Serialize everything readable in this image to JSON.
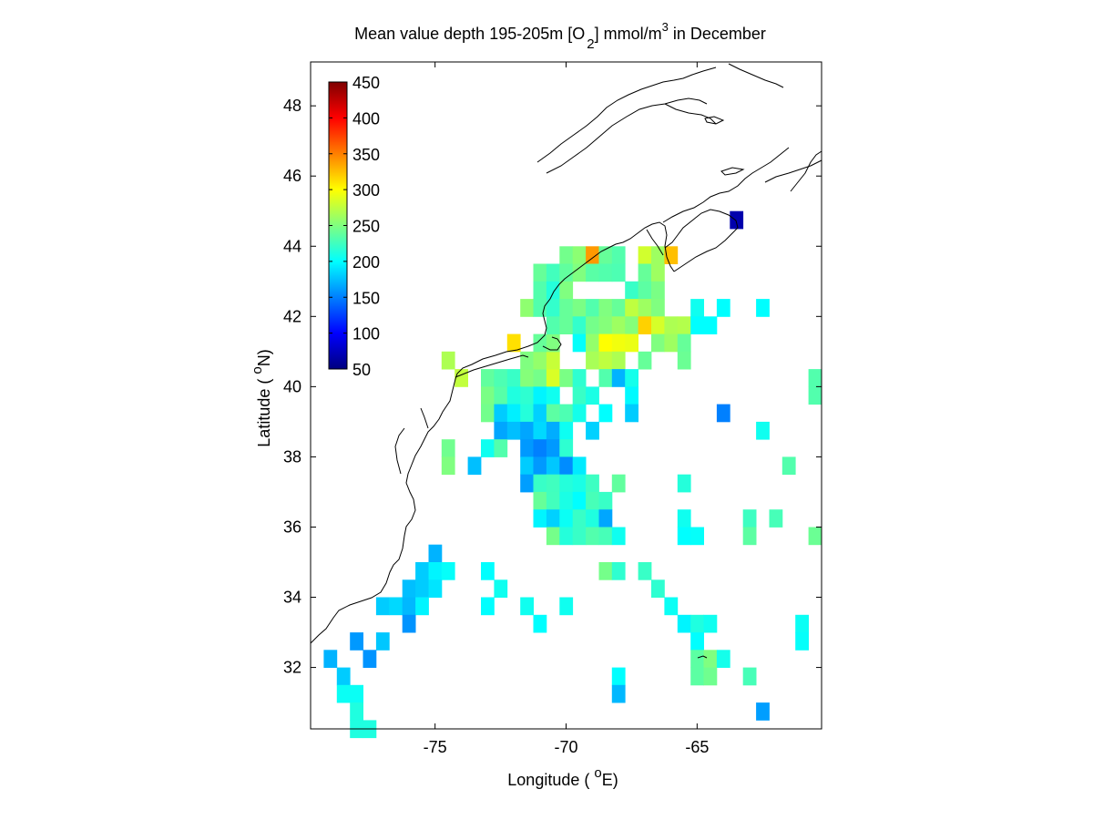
{
  "figure": {
    "title_main": "Mean value depth 195-205m [O",
    "title_sub": "2",
    "title_units": "] mmol/m",
    "title_sup": "3",
    "title_tail": " in December",
    "xlabel_main": "Longitude ( ",
    "xlabel_sup": "o",
    "xlabel_tail": "E)",
    "ylabel_main": "Latitude ( ",
    "ylabel_sup": "o",
    "ylabel_tail": "N)"
  },
  "chart_data": {
    "type": "heatmap",
    "xlim": [
      -79.75,
      -60.25
    ],
    "ylim": [
      30.25,
      49.25
    ],
    "cell_size_deg": 0.5,
    "x_ticks": [
      -75,
      -70,
      -65
    ],
    "x_tick_labels": [
      "-75",
      "-70",
      "-65"
    ],
    "y_ticks": [
      32,
      34,
      36,
      38,
      40,
      42,
      44,
      46,
      48
    ],
    "y_tick_labels": [
      "32",
      "34",
      "36",
      "38",
      "40",
      "42",
      "44",
      "46",
      "48"
    ],
    "colorbar": {
      "range": [
        50,
        450
      ],
      "ticks": [
        50,
        100,
        150,
        200,
        250,
        300,
        350,
        400,
        450
      ],
      "tick_labels": [
        "50",
        "100",
        "150",
        "200",
        "250",
        "300",
        "350",
        "400",
        "450"
      ],
      "colormap": "jet"
    },
    "cells": [
      [
        -74.5,
        40.75,
        268
      ],
      [
        -74,
        40.25,
        276
      ],
      [
        -72,
        41.25,
        312
      ],
      [
        -73,
        40.25,
        238
      ],
      [
        -72.5,
        40.25,
        230
      ],
      [
        -72,
        40.25,
        222
      ],
      [
        -71.5,
        40.25,
        252
      ],
      [
        -71,
        40.25,
        246
      ],
      [
        -70.5,
        40.25,
        285
      ],
      [
        -71.5,
        40.75,
        250
      ],
      [
        -71,
        40.75,
        258
      ],
      [
        -70.5,
        40.75,
        278
      ],
      [
        -71,
        41.25,
        240
      ],
      [
        -70.5,
        41.25,
        250
      ],
      [
        -70,
        43.75,
        245
      ],
      [
        -69.5,
        43.75,
        255
      ],
      [
        -69,
        43.75,
        340
      ],
      [
        -68.5,
        43.75,
        240
      ],
      [
        -68,
        43.75,
        232
      ],
      [
        -67,
        43.75,
        282
      ],
      [
        -66.5,
        43.75,
        262
      ],
      [
        -66,
        43.75,
        325
      ],
      [
        -71,
        43.25,
        240
      ],
      [
        -70.5,
        43.25,
        226
      ],
      [
        -70,
        43.25,
        238
      ],
      [
        -69.5,
        43.25,
        250
      ],
      [
        -69,
        43.25,
        235
      ],
      [
        -68.5,
        43.25,
        232
      ],
      [
        -68,
        43.25,
        230
      ],
      [
        -67,
        43.25,
        240
      ],
      [
        -66.5,
        43.25,
        262
      ],
      [
        -71,
        42.75,
        232
      ],
      [
        -70.5,
        42.75,
        214
      ],
      [
        -70,
        42.75,
        250
      ],
      [
        -67.5,
        42.75,
        222
      ],
      [
        -67,
        42.75,
        236
      ],
      [
        -66.5,
        42.75,
        248
      ],
      [
        -71.5,
        42.25,
        256
      ],
      [
        -71,
        42.25,
        232
      ],
      [
        -70.5,
        42.25,
        220
      ],
      [
        -70,
        42.25,
        240
      ],
      [
        -69.5,
        42.25,
        248
      ],
      [
        -69,
        42.25,
        232
      ],
      [
        -68.5,
        42.25,
        250
      ],
      [
        -68,
        42.25,
        240
      ],
      [
        -67.5,
        42.25,
        275
      ],
      [
        -67,
        42.25,
        262
      ],
      [
        -66.5,
        42.25,
        250
      ],
      [
        -70.5,
        41.75,
        232
      ],
      [
        -70,
        41.75,
        240
      ],
      [
        -69.5,
        41.75,
        220
      ],
      [
        -69,
        41.75,
        246
      ],
      [
        -68.5,
        41.75,
        252
      ],
      [
        -68,
        41.75,
        262
      ],
      [
        -67.5,
        41.75,
        252
      ],
      [
        -67,
        41.75,
        318
      ],
      [
        -66.5,
        41.75,
        284
      ],
      [
        -66,
        41.75,
        268
      ],
      [
        -65.5,
        41.75,
        270
      ],
      [
        -69.5,
        41.25,
        202
      ],
      [
        -69,
        41.25,
        258
      ],
      [
        -68.5,
        41.25,
        300
      ],
      [
        -68,
        41.25,
        295
      ],
      [
        -67.5,
        41.25,
        292
      ],
      [
        -66.5,
        41.25,
        250
      ],
      [
        -66,
        41.25,
        262
      ],
      [
        -65.5,
        41.25,
        240
      ],
      [
        -69,
        40.75,
        266
      ],
      [
        -68.5,
        40.75,
        275
      ],
      [
        -68,
        40.75,
        268
      ],
      [
        -67,
        40.75,
        240
      ],
      [
        -65.5,
        40.75,
        242
      ],
      [
        -70,
        40.25,
        248
      ],
      [
        -69.5,
        40.25,
        218
      ],
      [
        -68.5,
        40.25,
        232
      ],
      [
        -68,
        40.25,
        170
      ],
      [
        -67.5,
        40.25,
        208
      ],
      [
        -73,
        39.75,
        248
      ],
      [
        -72.5,
        39.75,
        234
      ],
      [
        -72,
        39.75,
        212
      ],
      [
        -71.5,
        39.75,
        218
      ],
      [
        -71,
        39.75,
        196
      ],
      [
        -70.5,
        39.75,
        206
      ],
      [
        -69.5,
        39.75,
        222
      ],
      [
        -69,
        39.75,
        210
      ],
      [
        -67.5,
        39.75,
        198
      ],
      [
        -73,
        39.25,
        245
      ],
      [
        -72.5,
        39.25,
        180
      ],
      [
        -72,
        39.25,
        194
      ],
      [
        -71.5,
        39.25,
        214
      ],
      [
        -71,
        39.25,
        182
      ],
      [
        -70.5,
        39.25,
        236
      ],
      [
        -70,
        39.25,
        230
      ],
      [
        -69.5,
        39.25,
        208
      ],
      [
        -68.5,
        39.25,
        200
      ],
      [
        -67.5,
        39.25,
        180
      ],
      [
        -72.5,
        38.75,
        165
      ],
      [
        -72,
        38.75,
        175
      ],
      [
        -71.5,
        38.75,
        165
      ],
      [
        -71,
        38.75,
        185
      ],
      [
        -70.5,
        38.75,
        168
      ],
      [
        -70,
        38.75,
        205
      ],
      [
        -69,
        38.75,
        182
      ],
      [
        -74.5,
        38.25,
        244
      ],
      [
        -73,
        38.25,
        206
      ],
      [
        -72.5,
        38.25,
        232
      ],
      [
        -71.5,
        38.25,
        160
      ],
      [
        -71,
        38.25,
        150
      ],
      [
        -70.5,
        38.25,
        160
      ],
      [
        -70,
        38.25,
        218
      ],
      [
        -74.5,
        37.75,
        250
      ],
      [
        -73.5,
        37.75,
        175
      ],
      [
        -71.5,
        37.75,
        180
      ],
      [
        -71,
        37.75,
        160
      ],
      [
        -70.5,
        37.75,
        178
      ],
      [
        -70,
        37.75,
        155
      ],
      [
        -69.5,
        37.75,
        192
      ],
      [
        -71.5,
        37.25,
        162
      ],
      [
        -71,
        37.25,
        222
      ],
      [
        -70.5,
        37.25,
        225
      ],
      [
        -70,
        37.25,
        214
      ],
      [
        -69.5,
        37.25,
        210
      ],
      [
        -69,
        37.25,
        224
      ],
      [
        -68,
        37.25,
        238
      ],
      [
        -65.5,
        37.25,
        214
      ],
      [
        -71,
        36.75,
        240
      ],
      [
        -70.5,
        36.75,
        226
      ],
      [
        -70,
        36.75,
        210
      ],
      [
        -69.5,
        36.75,
        200
      ],
      [
        -69,
        36.75,
        228
      ],
      [
        -68.5,
        36.75,
        222
      ],
      [
        -71,
        36.25,
        196
      ],
      [
        -70.5,
        36.25,
        182
      ],
      [
        -70,
        36.25,
        204
      ],
      [
        -69.5,
        36.25,
        222
      ],
      [
        -69,
        36.25,
        212
      ],
      [
        -68.5,
        36.25,
        165
      ],
      [
        -65.5,
        36.25,
        206
      ],
      [
        -63,
        36.25,
        224
      ],
      [
        -62,
        36.25,
        228
      ],
      [
        -70.5,
        35.75,
        246
      ],
      [
        -70,
        35.75,
        214
      ],
      [
        -69.5,
        35.75,
        222
      ],
      [
        -69,
        35.75,
        232
      ],
      [
        -68.5,
        35.75,
        228
      ],
      [
        -68,
        35.75,
        206
      ],
      [
        -65.5,
        35.75,
        200
      ],
      [
        -65,
        35.75,
        202
      ],
      [
        -63,
        35.75,
        236
      ],
      [
        -60.5,
        35.75,
        242
      ],
      [
        -75,
        35.25,
        170
      ],
      [
        -75.5,
        34.75,
        180
      ],
      [
        -75,
        34.75,
        196
      ],
      [
        -74.5,
        34.75,
        202
      ],
      [
        -73,
        34.75,
        200
      ],
      [
        -68.5,
        34.75,
        246
      ],
      [
        -68,
        34.75,
        218
      ],
      [
        -67,
        34.75,
        222
      ],
      [
        -76,
        34.25,
        175
      ],
      [
        -75.5,
        34.25,
        180
      ],
      [
        -75,
        34.25,
        190
      ],
      [
        -72.5,
        34.25,
        206
      ],
      [
        -66.5,
        34.25,
        218
      ],
      [
        -77,
        33.75,
        180
      ],
      [
        -76.5,
        33.75,
        185
      ],
      [
        -76,
        33.75,
        172
      ],
      [
        -75.5,
        33.75,
        196
      ],
      [
        -73,
        33.75,
        200
      ],
      [
        -71.5,
        33.75,
        206
      ],
      [
        -70,
        33.75,
        206
      ],
      [
        -66,
        33.75,
        204
      ],
      [
        -76,
        33.25,
        158
      ],
      [
        -71,
        33.25,
        200
      ],
      [
        -65.5,
        33.25,
        196
      ],
      [
        -65,
        33.25,
        212
      ],
      [
        -64.5,
        33.25,
        206
      ],
      [
        -61,
        33.25,
        204
      ],
      [
        -78,
        32.75,
        160
      ],
      [
        -77,
        32.75,
        178
      ],
      [
        -65,
        32.75,
        200
      ],
      [
        -61,
        32.75,
        202
      ],
      [
        -79,
        32.25,
        170
      ],
      [
        -77.5,
        32.25,
        158
      ],
      [
        -65,
        32.25,
        236
      ],
      [
        -64.5,
        32.25,
        250
      ],
      [
        -64,
        32.25,
        208
      ],
      [
        -78.5,
        31.75,
        180
      ],
      [
        -68,
        31.75,
        200
      ],
      [
        -65,
        31.75,
        236
      ],
      [
        -64.5,
        31.75,
        244
      ],
      [
        -63,
        31.75,
        228
      ],
      [
        -78.5,
        31.25,
        204
      ],
      [
        -78,
        31.25,
        204
      ],
      [
        -68,
        31.25,
        172
      ],
      [
        -78,
        30.75,
        212
      ],
      [
        -62.5,
        30.75,
        162
      ],
      [
        -78,
        30.25,
        212
      ],
      [
        -77.5,
        30.25,
        212
      ],
      [
        -63.5,
        44.75,
        68
      ],
      [
        -64,
        39.25,
        150
      ],
      [
        -62.5,
        38.75,
        206
      ],
      [
        -61.5,
        37.75,
        232
      ],
      [
        -60.5,
        40.25,
        232
      ],
      [
        -60.5,
        39.75,
        232
      ],
      [
        -65,
        42.25,
        206
      ],
      [
        -64.5,
        41.75,
        200
      ],
      [
        -65,
        41.75,
        200
      ],
      [
        -64,
        42.25,
        200
      ],
      [
        -62.5,
        42.25,
        200
      ]
    ]
  }
}
